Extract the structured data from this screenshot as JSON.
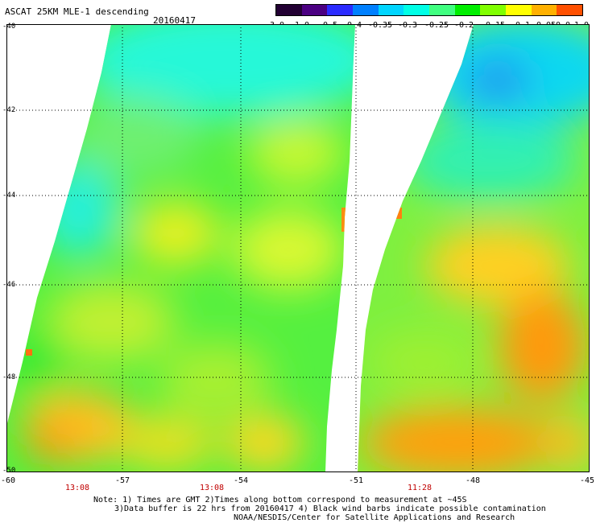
{
  "header": {
    "title": "ASCAT 25KM MLE-1 descending",
    "date": "20160417"
  },
  "colorbar": {
    "labels": [
      "-3.0",
      "-1.0",
      "-0.5",
      "-0.4",
      "-0.35",
      "-0.3",
      "-0.25",
      "-0.2",
      "-0.15",
      "-0.1",
      "-0.05",
      "0.0",
      "1.0"
    ],
    "colors": [
      "#220033",
      "#4b0082",
      "#2b2bff",
      "#0080ff",
      "#00d5ff",
      "#00ffe6",
      "#40ff80",
      "#00ee00",
      "#80ff00",
      "#ffff00",
      "#ffb000",
      "#ff5000"
    ]
  },
  "map": {
    "lat_labels": [
      "-40",
      "-42",
      "-44",
      "-46",
      "-48",
      "-50"
    ],
    "lon_labels": [
      "-60",
      "-57",
      "-54",
      "-51",
      "-48",
      "-45"
    ],
    "time_labels": [
      "13:08",
      "13:08",
      "11:28"
    ]
  },
  "footer": {
    "note_line1": "Note: 1) Times are GMT 2)Times along bottom correspond to measurement at ~45S",
    "note_line2": "3)Data buffer is 22 hrs from 20160417 4) Black wind barbs indicate possible contamination",
    "note_line3": "NOAA/NESDIS/Center for Satellite Applications and Research"
  }
}
